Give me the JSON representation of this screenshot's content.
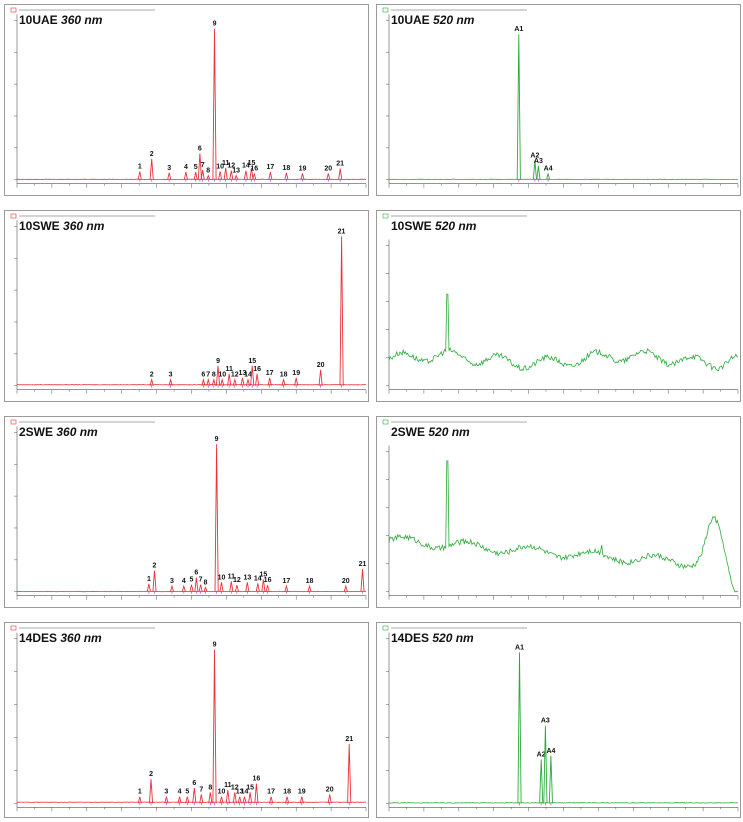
{
  "colors": {
    "red": "#e8323c",
    "green": "#2eaa3c",
    "magenta": "#d53cc8",
    "axis": "#555555"
  },
  "chart_data": [
    {
      "id": "10UAE-360",
      "type": "line",
      "sample": "10UAE",
      "wavelength": "360 nm",
      "color": "red",
      "x_range": [
        0,
        50
      ],
      "y_max": 230,
      "x": [],
      "y": [],
      "peaks": [
        {
          "label": "1",
          "x": 17.6,
          "y": 12
        },
        {
          "label": "2",
          "x": 19.3,
          "y": 30
        },
        {
          "label": "3",
          "x": 21.8,
          "y": 10
        },
        {
          "label": "4",
          "x": 24.2,
          "y": 11
        },
        {
          "label": "5",
          "x": 25.6,
          "y": 11
        },
        {
          "label": "6",
          "x": 26.2,
          "y": 38
        },
        {
          "label": "7",
          "x": 26.6,
          "y": 14
        },
        {
          "label": "8",
          "x": 27.4,
          "y": 6
        },
        {
          "label": "9",
          "x": 28.3,
          "y": 218
        },
        {
          "label": "10",
          "x": 29.1,
          "y": 12
        },
        {
          "label": "11",
          "x": 29.9,
          "y": 17
        },
        {
          "label": "12",
          "x": 30.7,
          "y": 13
        },
        {
          "label": "13",
          "x": 31.4,
          "y": 6
        },
        {
          "label": "14",
          "x": 32.8,
          "y": 13
        },
        {
          "label": "15",
          "x": 33.6,
          "y": 17
        },
        {
          "label": "16",
          "x": 34.0,
          "y": 9
        },
        {
          "label": "17",
          "x": 36.3,
          "y": 11
        },
        {
          "label": "18",
          "x": 38.6,
          "y": 10
        },
        {
          "label": "19",
          "x": 40.9,
          "y": 9
        },
        {
          "label": "20",
          "x": 44.6,
          "y": 9
        },
        {
          "label": "21",
          "x": 46.3,
          "y": 16
        }
      ]
    },
    {
      "id": "10UAE-520",
      "type": "line",
      "sample": "10UAE",
      "wavelength": "520 nm",
      "color": "green",
      "x_range": [
        0,
        50
      ],
      "y_max": 230,
      "x": [],
      "y": [],
      "peaks": [
        {
          "label": "A1",
          "x": 18.6,
          "y": 210
        },
        {
          "label": "A2",
          "x": 20.9,
          "y": 28
        },
        {
          "label": "A3",
          "x": 21.4,
          "y": 20
        },
        {
          "label": "A4",
          "x": 22.8,
          "y": 9
        }
      ]
    },
    {
      "id": "10SWE-360",
      "type": "line",
      "sample": "10SWE",
      "wavelength": "360 nm",
      "color": "red",
      "x_range": [
        0,
        50
      ],
      "y_max": 80,
      "x": [],
      "y": [],
      "peaks": [
        {
          "label": "2",
          "x": 19.3,
          "y": 3
        },
        {
          "label": "3",
          "x": 22.0,
          "y": 3
        },
        {
          "label": "6",
          "x": 26.7,
          "y": 3
        },
        {
          "label": "7",
          "x": 27.4,
          "y": 3
        },
        {
          "label": "8",
          "x": 28.2,
          "y": 3
        },
        {
          "label": "9",
          "x": 28.8,
          "y": 10
        },
        {
          "label": "10",
          "x": 29.4,
          "y": 3
        },
        {
          "label": "11",
          "x": 30.4,
          "y": 6
        },
        {
          "label": "12",
          "x": 31.2,
          "y": 3
        },
        {
          "label": "13",
          "x": 32.3,
          "y": 4
        },
        {
          "label": "14",
          "x": 33.1,
          "y": 3
        },
        {
          "label": "15",
          "x": 33.7,
          "y": 10
        },
        {
          "label": "16",
          "x": 34.4,
          "y": 6
        },
        {
          "label": "17",
          "x": 36.2,
          "y": 4
        },
        {
          "label": "18",
          "x": 38.2,
          "y": 3
        },
        {
          "label": "19",
          "x": 40.0,
          "y": 4
        },
        {
          "label": "20",
          "x": 43.5,
          "y": 8
        },
        {
          "label": "21",
          "x": 46.5,
          "y": 75
        }
      ]
    },
    {
      "id": "10SWE-520",
      "type": "line",
      "sample": "10SWE",
      "wavelength": "520 nm",
      "color": "green",
      "x_range": [
        0,
        50
      ],
      "y_max": 150,
      "x": [],
      "y": [],
      "peaks": []
    },
    {
      "id": "2SWE-360",
      "type": "line",
      "sample": "2SWE",
      "wavelength": "360 nm",
      "color": "red",
      "x_range": [
        0,
        50
      ],
      "y_max": 340,
      "x": [],
      "y": [],
      "peaks": [
        {
          "label": "1",
          "x": 18.9,
          "y": 17
        },
        {
          "label": "2",
          "x": 19.7,
          "y": 45
        },
        {
          "label": "3",
          "x": 22.2,
          "y": 12
        },
        {
          "label": "4",
          "x": 23.9,
          "y": 12
        },
        {
          "label": "5",
          "x": 25.0,
          "y": 15
        },
        {
          "label": "6",
          "x": 25.7,
          "y": 30
        },
        {
          "label": "7",
          "x": 26.3,
          "y": 15
        },
        {
          "label": "8",
          "x": 27.0,
          "y": 9
        },
        {
          "label": "9",
          "x": 28.6,
          "y": 315
        },
        {
          "label": "10",
          "x": 29.3,
          "y": 20
        },
        {
          "label": "11",
          "x": 30.7,
          "y": 22
        },
        {
          "label": "12",
          "x": 31.5,
          "y": 14
        },
        {
          "label": "13",
          "x": 33.0,
          "y": 20
        },
        {
          "label": "14",
          "x": 34.5,
          "y": 18
        },
        {
          "label": "15",
          "x": 35.3,
          "y": 26
        },
        {
          "label": "16",
          "x": 35.9,
          "y": 14
        },
        {
          "label": "17",
          "x": 38.6,
          "y": 12
        },
        {
          "label": "18",
          "x": 41.9,
          "y": 12
        },
        {
          "label": "20",
          "x": 47.1,
          "y": 12
        },
        {
          "label": "21",
          "x": 49.5,
          "y": 48
        }
      ]
    },
    {
      "id": "2SWE-520",
      "type": "line",
      "sample": "2SWE",
      "wavelength": "520 nm",
      "color": "green",
      "x_range": [
        0,
        50
      ],
      "y_max": 150,
      "x": [],
      "y": [],
      "peaks": []
    },
    {
      "id": "14DES-360",
      "type": "line",
      "sample": "14DES",
      "wavelength": "360 nm",
      "color": "red",
      "x_range": [
        0,
        50
      ],
      "y_max": 75,
      "x": [],
      "y": [],
      "peaks": [
        {
          "label": "1",
          "x": 17.6,
          "y": 3
        },
        {
          "label": "2",
          "x": 19.2,
          "y": 11
        },
        {
          "label": "3",
          "x": 21.4,
          "y": 3
        },
        {
          "label": "4",
          "x": 23.3,
          "y": 3
        },
        {
          "label": "5",
          "x": 24.4,
          "y": 3
        },
        {
          "label": "6",
          "x": 25.4,
          "y": 7
        },
        {
          "label": "7",
          "x": 26.4,
          "y": 4
        },
        {
          "label": "8",
          "x": 27.7,
          "y": 5
        },
        {
          "label": "9",
          "x": 28.3,
          "y": 70
        },
        {
          "label": "10",
          "x": 29.3,
          "y": 3
        },
        {
          "label": "11",
          "x": 30.2,
          "y": 6
        },
        {
          "label": "12",
          "x": 31.2,
          "y": 5
        },
        {
          "label": "13",
          "x": 31.9,
          "y": 3
        },
        {
          "label": "14",
          "x": 32.6,
          "y": 3
        },
        {
          "label": "15",
          "x": 33.4,
          "y": 5
        },
        {
          "label": "16",
          "x": 34.3,
          "y": 9
        },
        {
          "label": "17",
          "x": 36.4,
          "y": 3
        },
        {
          "label": "18",
          "x": 38.7,
          "y": 3
        },
        {
          "label": "19",
          "x": 40.8,
          "y": 3
        },
        {
          "label": "20",
          "x": 44.8,
          "y": 4
        },
        {
          "label": "21",
          "x": 47.6,
          "y": 27
        }
      ]
    },
    {
      "id": "14DES-520",
      "type": "line",
      "sample": "14DES",
      "wavelength": "520 nm",
      "color": "green",
      "x_range": [
        0,
        50
      ],
      "y_max": 180,
      "x": [],
      "y": [],
      "peaks": [
        {
          "label": "A1",
          "x": 18.7,
          "y": 165
        },
        {
          "label": "A2",
          "x": 21.8,
          "y": 48
        },
        {
          "label": "A3",
          "x": 22.4,
          "y": 85
        },
        {
          "label": "A4",
          "x": 23.2,
          "y": 52
        }
      ]
    }
  ]
}
